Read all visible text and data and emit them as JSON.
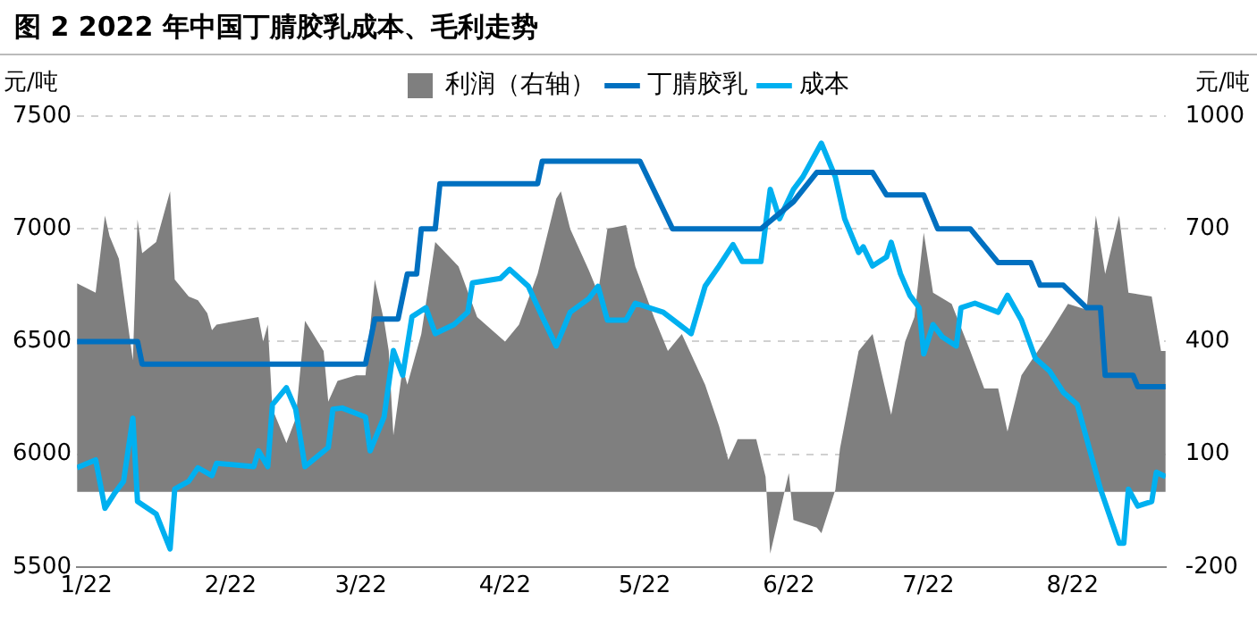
{
  "chart_data": {
    "type": "line",
    "title": "图 2 2022 年中国丁腈胶乳成本、毛利走势",
    "ylabel": "元/吨",
    "y2label": "元/吨",
    "xlim": [
      "--01-20",
      "--09-11"
    ],
    "xticks": [
      {
        "value": "--01-22",
        "label": "1/22"
      },
      {
        "value": "--02-22",
        "label": "2/22"
      },
      {
        "value": "--03-22",
        "label": "3/22"
      },
      {
        "value": "--04-22",
        "label": "4/22"
      },
      {
        "value": "--05-22",
        "label": "5/22"
      },
      {
        "value": "--06-22",
        "label": "6/22"
      },
      {
        "value": "--07-22",
        "label": "7/22"
      },
      {
        "value": "--08-22",
        "label": "8/22"
      }
    ],
    "ylim": [
      5500,
      7500
    ],
    "yticks": [
      5500,
      6000,
      6500,
      7000,
      7500
    ],
    "y2lim": [
      -200,
      1000
    ],
    "y2ticks": [
      -200,
      100,
      400,
      700,
      1000
    ],
    "grid": "y",
    "legend": "top",
    "series": [
      {
        "name": "利润（右轴）",
        "type": "area",
        "axis": "y2",
        "color": "#7f7f7f",
        "x": [
          "--01-20",
          "--01-24",
          "--01-26",
          "--01-27",
          "--01-29",
          "--01-30",
          "--02-01",
          "--02-02",
          "--02-03",
          "--02-06",
          "--02-09",
          "--02-10",
          "--02-13",
          "--02-15",
          "--02-17",
          "--02-18",
          "--02-19",
          "--02-28",
          "--03-01",
          "--03-02",
          "--03-03",
          "--03-06",
          "--03-08",
          "--03-10",
          "--03-14",
          "--03-15",
          "--03-17",
          "--03-21",
          "--03-23",
          "--03-25",
          "--03-27",
          "--03-28",
          "--03-29",
          "--03-31",
          "--04-01",
          "--04-04",
          "--04-07",
          "--04-12",
          "--04-16",
          "--04-22",
          "--04-25",
          "--04-29",
          "--05-03",
          "--05-04",
          "--05-06",
          "--05-10",
          "--05-12",
          "--05-14",
          "--05-18",
          "--05-20",
          "--05-24",
          "--05-27",
          "--05-30",
          "--06-04",
          "--06-07",
          "--06-09",
          "--06-11",
          "--06-15",
          "--06-17",
          "--06-18",
          "--06-22",
          "--06-23",
          "--06-28",
          "--06-29",
          "--07-02",
          "--07-03",
          "--07-07",
          "--07-10",
          "--07-14",
          "--07-17",
          "--07-19",
          "--07-21",
          "--07-23",
          "--07-27",
          "--07-31",
          "--08-03",
          "--08-06",
          "--08-08",
          "--08-11",
          "--08-17",
          "--08-21",
          "--08-25",
          "--08-27",
          "--08-29",
          "--09-01",
          "--09-03",
          "--09-08",
          "--09-10",
          "--09-11"
        ],
        "values": [
          555,
          530,
          735,
          680,
          620,
          530,
          350,
          725,
          635,
          665,
          800,
          565,
          520,
          510,
          475,
          430,
          445,
          465,
          400,
          445,
          220,
          130,
          195,
          455,
          375,
          240,
          295,
          310,
          310,
          565,
          455,
          375,
          150,
          330,
          285,
          420,
          665,
          600,
          465,
          400,
          445,
          580,
          780,
          800,
          700,
          590,
          530,
          700,
          710,
          600,
          465,
          375,
          420,
          285,
          175,
          85,
          140,
          140,
          40,
          -165,
          50,
          -75,
          -95,
          -110,
          5,
          115,
          375,
          420,
          205,
          400,
          465,
          690,
          530,
          500,
          375,
          275,
          275,
          160,
          310,
          420,
          500,
          485,
          735,
          580,
          735,
          530,
          520,
          375,
          375
        ]
      },
      {
        "name": "丁腈胶乳",
        "type": "line",
        "color": "#0070c0",
        "x": [
          "--01-20",
          "--02-02",
          "--02-03",
          "--03-23",
          "--03-25",
          "--03-30",
          "--04-01",
          "--04-03",
          "--04-04",
          "--04-07",
          "--04-08",
          "--04-29",
          "--04-30",
          "--05-21",
          "--05-28",
          "--06-16",
          "--06-23",
          "--06-28",
          "--07-10",
          "--07-13",
          "--07-21",
          "--07-24",
          "--07-31",
          "--08-06",
          "--08-13",
          "--08-15",
          "--08-20",
          "--08-25",
          "--08-28",
          "--08-29",
          "--09-04",
          "--09-05",
          "--09-11"
        ],
        "values": [
          6500,
          6500,
          6400,
          6400,
          6600,
          6600,
          6800,
          6800,
          7000,
          7000,
          7200,
          7200,
          7300,
          7300,
          7000,
          7000,
          7120,
          7250,
          7250,
          7150,
          7150,
          7000,
          7000,
          6850,
          6850,
          6750,
          6750,
          6650,
          6650,
          6350,
          6350,
          6300,
          6300
        ]
      },
      {
        "name": "成本",
        "type": "line",
        "color": "#00b0f0",
        "x": [
          "--01-20",
          "--01-24",
          "--01-26",
          "--01-28",
          "--01-30",
          "--02-01",
          "--02-02",
          "--02-06",
          "--02-09",
          "--02-10",
          "--02-13",
          "--02-15",
          "--02-18",
          "--02-19",
          "--02-27",
          "--02-28",
          "--03-02",
          "--03-03",
          "--03-06",
          "--03-08",
          "--03-10",
          "--03-15",
          "--03-16",
          "--03-18",
          "--03-23",
          "--03-24",
          "--03-27",
          "--03-29",
          "--03-31",
          "--04-02",
          "--04-05",
          "--04-07",
          "--04-11",
          "--04-14",
          "--04-15",
          "--04-21",
          "--04-23",
          "--04-27",
          "--04-30",
          "--05-03",
          "--05-06",
          "--05-10",
          "--05-12",
          "--05-14",
          "--05-18",
          "--05-20",
          "--05-26",
          "--06-01",
          "--06-04",
          "--06-07",
          "--06-10",
          "--06-12",
          "--06-16",
          "--06-18",
          "--06-20",
          "--06-23",
          "--06-25",
          "--06-27",
          "--06-29",
          "--07-02",
          "--07-04",
          "--07-07",
          "--07-08",
          "--07-10",
          "--07-13",
          "--07-14",
          "--07-16",
          "--07-18",
          "--07-20",
          "--07-21",
          "--07-23",
          "--07-25",
          "--07-28",
          "--07-29",
          "--08-01",
          "--08-06",
          "--08-08",
          "--08-11",
          "--08-14",
          "--08-17",
          "--08-20",
          "--08-23",
          "--08-26",
          "--08-28",
          "--09-01",
          "--09-02",
          "--09-03",
          "--09-05",
          "--09-08",
          "--09-09",
          "--09-11"
        ],
        "values": [
          5940,
          5975,
          5760,
          5825,
          5880,
          6160,
          5790,
          5735,
          5580,
          5845,
          5880,
          5940,
          5905,
          5960,
          5945,
          6015,
          5945,
          6220,
          6295,
          6200,
          5945,
          6030,
          6200,
          6205,
          6165,
          6015,
          6165,
          6460,
          6350,
          6610,
          6650,
          6535,
          6575,
          6630,
          6760,
          6780,
          6820,
          6745,
          6610,
          6480,
          6630,
          6690,
          6745,
          6595,
          6595,
          6670,
          6630,
          6535,
          6745,
          6835,
          6930,
          6855,
          6855,
          7175,
          7045,
          7175,
          7230,
          7305,
          7380,
          7230,
          7045,
          6895,
          6920,
          6835,
          6875,
          6940,
          6800,
          6705,
          6650,
          6445,
          6575,
          6520,
          6480,
          6650,
          6670,
          6630,
          6705,
          6595,
          6425,
          6370,
          6275,
          6220,
          5995,
          5845,
          5605,
          5605,
          5845,
          5770,
          5790,
          5920,
          5900
        ]
      }
    ]
  }
}
